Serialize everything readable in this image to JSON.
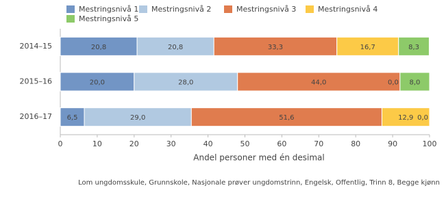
{
  "chart_data": {
    "type": "stacked-bar-horizontal",
    "categories": [
      "2014–15",
      "2015–16",
      "2016–17"
    ],
    "series": [
      {
        "name": "Mestringsnivå 1",
        "color": "#7295c5",
        "values": [
          20.8,
          20.0,
          6.5
        ],
        "value_labels": [
          "20,8",
          "20,0",
          "6,5"
        ]
      },
      {
        "name": "Mestringsnivå 2",
        "color": "#b1c9e1",
        "values": [
          20.8,
          28.0,
          29.0
        ],
        "value_labels": [
          "20,8",
          "28,0",
          "29,0"
        ]
      },
      {
        "name": "Mestringsnivå 3",
        "color": "#e07c4e",
        "values": [
          33.3,
          44.0,
          51.6
        ],
        "value_labels": [
          "33,3",
          "44,0",
          "51,6"
        ]
      },
      {
        "name": "Mestringsnivå 4",
        "color": "#fcca47",
        "values": [
          16.7,
          0.0,
          12.9
        ],
        "value_labels": [
          "16,7",
          "0,0",
          "12,9"
        ]
      },
      {
        "name": "Mestringsnivå 5",
        "color": "#8dca69",
        "values": [
          8.3,
          8.0,
          0.0
        ],
        "value_labels": [
          "8,3",
          "8,0",
          "0,0"
        ]
      }
    ],
    "xlim": [
      0,
      100
    ],
    "xticks": [
      0,
      10,
      20,
      30,
      40,
      50,
      60,
      70,
      80,
      90,
      100
    ],
    "xlabel": "Andel personer med én desimal",
    "note": "Lom ungdomsskule, Grunnskole, Nasjonale prøver ungdomstrinn, Engelsk, Offentlig, Trinn 8, Begge kjønn",
    "grid": false,
    "legend": "top"
  }
}
